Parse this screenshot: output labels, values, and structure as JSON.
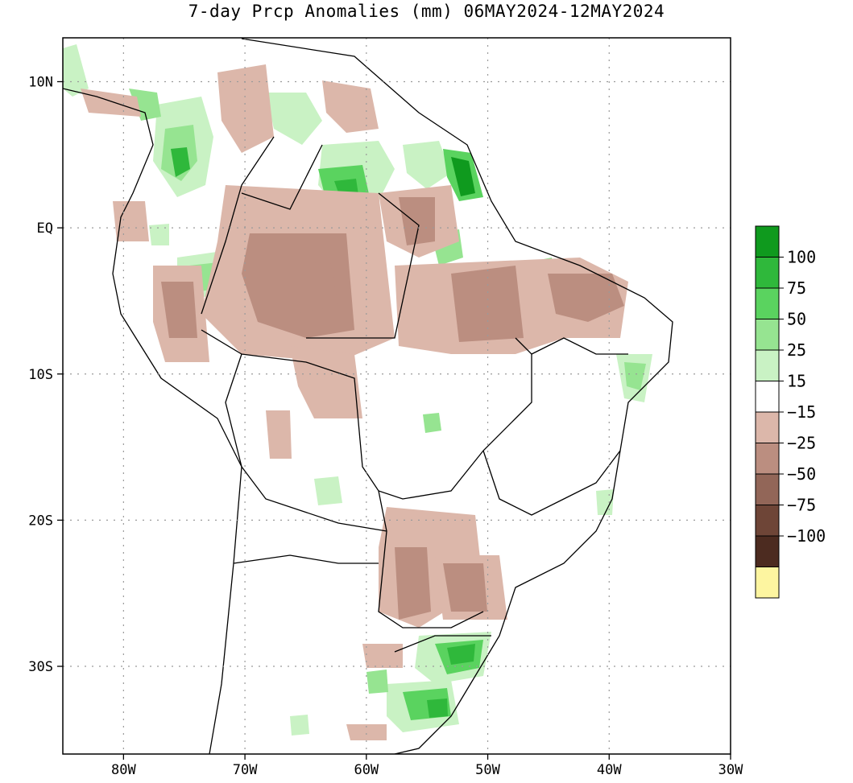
{
  "title": "7-day Prcp Anomalies (mm) 06MAY2024-12MAY2024",
  "map": {
    "lon_range": [
      -85,
      -30
    ],
    "lat_range": [
      -36,
      13
    ],
    "x_ticks": [
      {
        "lon": -80,
        "label": "80W"
      },
      {
        "lon": -70,
        "label": "70W"
      },
      {
        "lon": -60,
        "label": "60W"
      },
      {
        "lon": -50,
        "label": "50W"
      },
      {
        "lon": -40,
        "label": "40W"
      },
      {
        "lon": -30,
        "label": "30W"
      }
    ],
    "y_ticks": [
      {
        "lat": 10,
        "label": "10N"
      },
      {
        "lat": 0,
        "label": "EQ"
      },
      {
        "lat": -10,
        "label": "10S"
      },
      {
        "lat": -20,
        "label": "20S"
      },
      {
        "lat": -30,
        "label": "30S"
      }
    ],
    "gridlines": true
  },
  "legend": {
    "entries": [
      {
        "label": "100",
        "color": "#0f9a1e"
      },
      {
        "label": "75",
        "color": "#2fb83b"
      },
      {
        "label": "50",
        "color": "#5ad35f"
      },
      {
        "label": "25",
        "color": "#96e491"
      },
      {
        "label": "15",
        "color": "#c9f2c4"
      },
      {
        "label": "−15",
        "color": "#ffffff"
      },
      {
        "label": "−25",
        "color": "#dcb7aa"
      },
      {
        "label": "−50",
        "color": "#bb8e80"
      },
      {
        "label": "−75",
        "color": "#926658"
      },
      {
        "label": "−100",
        "color": "#6e4537"
      },
      {
        "label": "",
        "color": "#4c2b20"
      },
      {
        "label": "",
        "color": "#fdf5a0"
      }
    ]
  }
}
